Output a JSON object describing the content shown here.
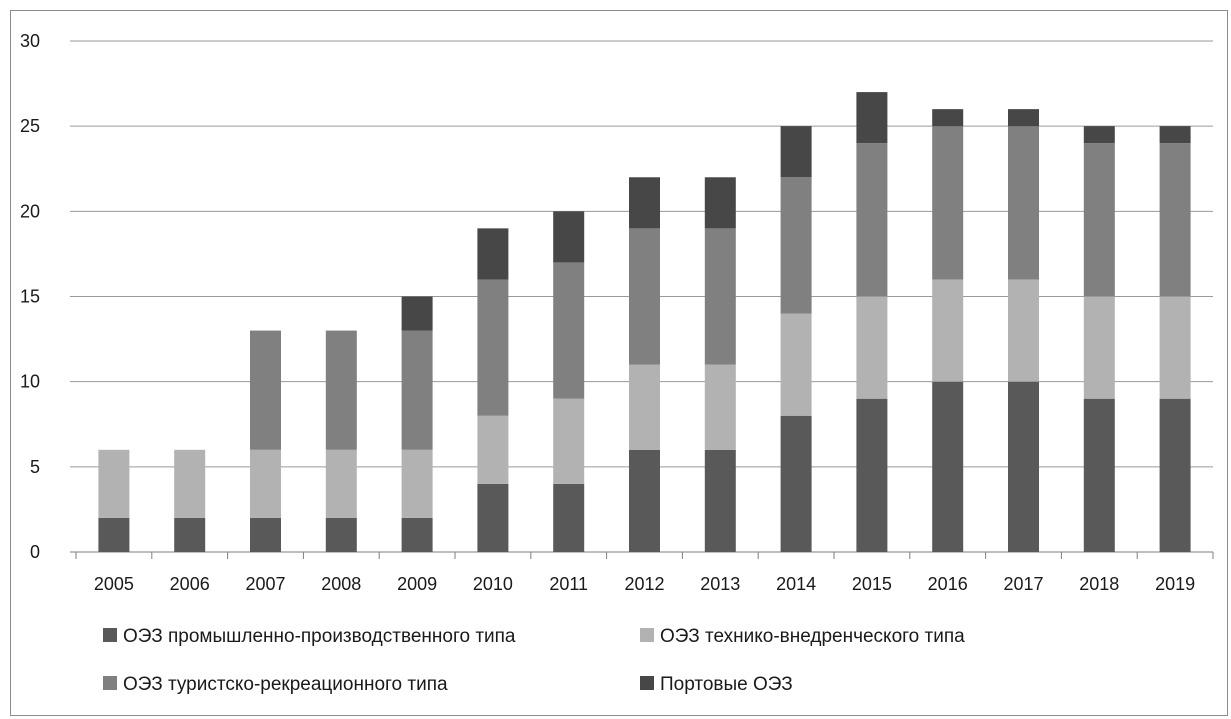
{
  "chart_data": {
    "type": "bar",
    "stacked": true,
    "categories": [
      "2005",
      "2006",
      "2007",
      "2008",
      "2009",
      "2010",
      "2011",
      "2012",
      "2013",
      "2014",
      "2015",
      "2016",
      "2017",
      "2018",
      "2019"
    ],
    "series": [
      {
        "name": "ОЭЗ промышленно-производственного типа",
        "color": "#595959",
        "values": [
          2,
          2,
          2,
          2,
          2,
          4,
          4,
          6,
          6,
          8,
          9,
          10,
          10,
          9,
          9
        ]
      },
      {
        "name": "ОЭЗ технико-внедренческого типа",
        "color": "#b2b2b2",
        "values": [
          4,
          4,
          4,
          4,
          4,
          4,
          5,
          5,
          5,
          6,
          6,
          6,
          6,
          6,
          6
        ]
      },
      {
        "name": "ОЭЗ туристско-рекреационного типа",
        "color": "#808080",
        "values": [
          0,
          0,
          7,
          7,
          7,
          8,
          8,
          8,
          8,
          8,
          9,
          9,
          9,
          9,
          9
        ]
      },
      {
        "name": "Портовые ОЭЗ",
        "color": "#474747",
        "values": [
          0,
          0,
          0,
          0,
          2,
          3,
          3,
          3,
          3,
          3,
          3,
          1,
          1,
          1,
          1
        ]
      }
    ],
    "ylim": [
      0,
      30
    ],
    "yticks": [
      0,
      5,
      10,
      15,
      20,
      25,
      30
    ],
    "grid": true,
    "legend": "bottom"
  }
}
